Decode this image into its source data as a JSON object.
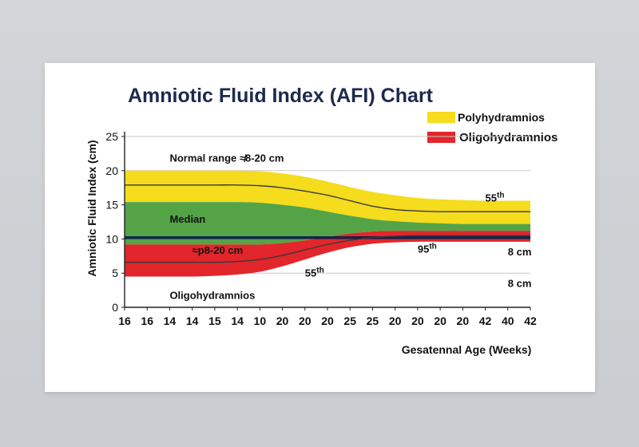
{
  "chart_data": {
    "type": "area",
    "title": "Amniotic Fluid Index (AFI) Chart",
    "ylabel": "Amniotic Fluid Index (cm)",
    "xlabel": "Gesatennal Age (Weeks)",
    "ylim": [
      0,
      25
    ],
    "yticks": [
      25,
      20,
      15,
      10,
      5,
      0
    ],
    "ytick_labels": [
      "25",
      "20",
      "15",
      "10",
      "5",
      "0"
    ],
    "categories": [
      "16",
      "16",
      "14",
      "14",
      "15",
      "14",
      "10",
      "20",
      "20",
      "20",
      "25",
      "25",
      "20",
      "20",
      "20",
      "20",
      "42",
      "40",
      "42"
    ],
    "grid": true,
    "legend": {
      "position": "top-right",
      "items": [
        {
          "label": "Polyhydramnios",
          "color": "#f5dc1c"
        },
        {
          "label": "Oligohydramnios",
          "color": "#e2262b"
        }
      ]
    },
    "series": [
      {
        "name": "Polyhydramnios",
        "color": "#f5dc1c",
        "upper": [
          20,
          20,
          20,
          20,
          20,
          20,
          19.9,
          19.6,
          19.1,
          18.4,
          17.6,
          16.9,
          16.4,
          16.0,
          15.8,
          15.7,
          15.6,
          15.6,
          15.6
        ],
        "lower": [
          15.4,
          15.4,
          15.4,
          15.4,
          15.4,
          15.4,
          15.3,
          15.0,
          14.6,
          14.0,
          13.4,
          12.9,
          12.6,
          12.4,
          12.3,
          12.2,
          12.2,
          12.2,
          12.2
        ]
      },
      {
        "name": "Normal",
        "color": "#54a447",
        "upper": [
          15.4,
          15.4,
          15.4,
          15.4,
          15.4,
          15.4,
          15.3,
          15.0,
          14.6,
          14.0,
          13.4,
          12.9,
          12.6,
          12.4,
          12.3,
          12.2,
          12.2,
          12.2,
          12.2
        ],
        "lower": [
          9.2,
          9.2,
          9.2,
          9.2,
          9.2,
          9.2,
          9.2,
          9.4,
          9.8,
          10.3,
          10.8,
          11.1,
          11.2,
          11.2,
          11.2,
          11.2,
          11.2,
          11.2,
          11.2
        ]
      },
      {
        "name": "Oligohydramnios",
        "color": "#e2262b",
        "upper": [
          9.2,
          9.2,
          9.2,
          9.2,
          9.2,
          9.2,
          9.2,
          9.4,
          9.8,
          10.3,
          10.8,
          11.1,
          11.2,
          11.2,
          11.2,
          11.2,
          11.2,
          11.2,
          11.2
        ],
        "lower": [
          4.5,
          4.5,
          4.5,
          4.5,
          4.6,
          4.8,
          5.2,
          6.0,
          7.0,
          8.0,
          8.8,
          9.3,
          9.5,
          9.6,
          9.6,
          9.6,
          9.6,
          9.6,
          9.6
        ]
      }
    ],
    "lines": [
      {
        "name": "upper",
        "color": "#3a3a3a",
        "values": [
          17.9,
          17.9,
          17.9,
          17.9,
          17.9,
          17.9,
          17.8,
          17.5,
          17.0,
          16.4,
          15.6,
          14.8,
          14.3,
          14.1,
          14.0,
          14.0,
          14.0,
          14.0,
          14.0
        ]
      },
      {
        "name": "Median",
        "color": "#12224d",
        "values": [
          10.2,
          10.2,
          10.2,
          10.2,
          10.2,
          10.2,
          10.2,
          10.2,
          10.2,
          10.2,
          10.2,
          10.2,
          10.2,
          10.2,
          10.2,
          10.2,
          10.2,
          10.2,
          10.2
        ]
      },
      {
        "name": "lower",
        "color": "#3a3a3a",
        "values": [
          6.6,
          6.6,
          6.6,
          6.6,
          6.6,
          6.7,
          7.0,
          7.6,
          8.4,
          9.2,
          9.8,
          10.2,
          10.4,
          10.5,
          10.5,
          10.5,
          10.5,
          10.5,
          10.5
        ]
      }
    ],
    "annotations": [
      {
        "text": "Normal range ≉8-20 cm",
        "x": 2,
        "y": 21.3
      },
      {
        "text": "Median",
        "x": 2,
        "y": 12.4
      },
      {
        "text": "≈p8-20 cm",
        "x": 3,
        "y": 7.8
      },
      {
        "text": "Oligohydramnios",
        "x": 2,
        "y": 1.2
      },
      {
        "text": "55th",
        "x": 8,
        "y": 4.5,
        "sup": "th"
      },
      {
        "text": "95th",
        "x": 13,
        "y": 8.0,
        "sup": "th"
      },
      {
        "text": "55th",
        "x": 16,
        "y": 15.5,
        "sup": "th"
      },
      {
        "text": "8 cm",
        "x": 17,
        "y": 7.6
      },
      {
        "text": "8 cm",
        "x": 17,
        "y": 3.0
      }
    ]
  }
}
